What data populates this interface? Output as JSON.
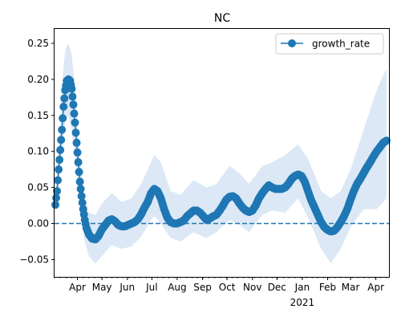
{
  "chart_data": {
    "type": "line",
    "title": "NC",
    "xlabel": "",
    "ylabel": "",
    "x_ticks": [
      {
        "date": "2020-04-01",
        "label": "Apr"
      },
      {
        "date": "2020-05-01",
        "label": "May"
      },
      {
        "date": "2020-06-01",
        "label": "Jun"
      },
      {
        "date": "2020-07-01",
        "label": "Jul"
      },
      {
        "date": "2020-08-01",
        "label": "Aug"
      },
      {
        "date": "2020-09-01",
        "label": "Sep"
      },
      {
        "date": "2020-10-01",
        "label": "Oct"
      },
      {
        "date": "2020-11-01",
        "label": "Nov"
      },
      {
        "date": "2020-12-01",
        "label": "Dec"
      },
      {
        "date": "2021-01-01",
        "label": "Jan"
      },
      {
        "date": "2021-02-01",
        "label": "Feb"
      },
      {
        "date": "2021-03-01",
        "label": "Mar"
      },
      {
        "date": "2021-04-01",
        "label": "Apr"
      }
    ],
    "x_year_label": {
      "date": "2021-01-01",
      "label": "2021"
    },
    "xlim": [
      "2020-03-04",
      "2021-04-17"
    ],
    "y_ticks": [
      -0.05,
      0.0,
      0.05,
      0.1,
      0.15,
      0.2,
      0.25
    ],
    "y_tick_labels": [
      "−0.05",
      "0.00",
      "0.05",
      "0.10",
      "0.15",
      "0.20",
      "0.25"
    ],
    "ylim": [
      -0.074,
      0.27
    ],
    "reference_line": {
      "y": 0.0,
      "style": "dashed"
    },
    "grid": false,
    "legend": {
      "position": "top-right"
    },
    "color": "#1f77b4",
    "band_color": "#dce8f5",
    "series": [
      {
        "name": "growth_rate",
        "marker": "circle",
        "points": [
          [
            "2020-03-05",
            0.026
          ],
          [
            "2020-03-07",
            0.045
          ],
          [
            "2020-03-09",
            0.075
          ],
          [
            "2020-03-11",
            0.102
          ],
          [
            "2020-03-13",
            0.13
          ],
          [
            "2020-03-15",
            0.162
          ],
          [
            "2020-03-17",
            0.185
          ],
          [
            "2020-03-19",
            0.198
          ],
          [
            "2020-03-21",
            0.2
          ],
          [
            "2020-03-23",
            0.198
          ],
          [
            "2020-03-25",
            0.187
          ],
          [
            "2020-03-27",
            0.165
          ],
          [
            "2020-03-29",
            0.14
          ],
          [
            "2020-03-31",
            0.112
          ],
          [
            "2020-04-02",
            0.085
          ],
          [
            "2020-04-04",
            0.058
          ],
          [
            "2020-04-06",
            0.038
          ],
          [
            "2020-04-08",
            0.02
          ],
          [
            "2020-04-10",
            0.005
          ],
          [
            "2020-04-12",
            -0.006
          ],
          [
            "2020-04-15",
            -0.015
          ],
          [
            "2020-04-19",
            -0.021
          ],
          [
            "2020-04-23",
            -0.022
          ],
          [
            "2020-04-27",
            -0.017
          ],
          [
            "2020-05-01",
            -0.008
          ],
          [
            "2020-05-05",
            -0.002
          ],
          [
            "2020-05-09",
            0.004
          ],
          [
            "2020-05-13",
            0.006
          ],
          [
            "2020-05-17",
            0.003
          ],
          [
            "2020-05-21",
            -0.002
          ],
          [
            "2020-05-25",
            -0.004
          ],
          [
            "2020-05-29",
            -0.004
          ],
          [
            "2020-06-02",
            -0.002
          ],
          [
            "2020-06-06",
            0.0
          ],
          [
            "2020-06-10",
            0.002
          ],
          [
            "2020-06-14",
            0.006
          ],
          [
            "2020-06-18",
            0.013
          ],
          [
            "2020-06-22",
            0.022
          ],
          [
            "2020-06-26",
            0.03
          ],
          [
            "2020-06-30",
            0.042
          ],
          [
            "2020-07-04",
            0.048
          ],
          [
            "2020-07-08",
            0.045
          ],
          [
            "2020-07-12",
            0.035
          ],
          [
            "2020-07-16",
            0.02
          ],
          [
            "2020-07-20",
            0.008
          ],
          [
            "2020-07-24",
            0.002
          ],
          [
            "2020-07-28",
            0.0
          ],
          [
            "2020-08-01",
            0.0
          ],
          [
            "2020-08-05",
            0.002
          ],
          [
            "2020-08-09",
            0.004
          ],
          [
            "2020-08-13",
            0.01
          ],
          [
            "2020-08-17",
            0.014
          ],
          [
            "2020-08-21",
            0.018
          ],
          [
            "2020-08-25",
            0.018
          ],
          [
            "2020-08-29",
            0.015
          ],
          [
            "2020-09-02",
            0.01
          ],
          [
            "2020-09-06",
            0.005
          ],
          [
            "2020-09-10",
            0.007
          ],
          [
            "2020-09-14",
            0.01
          ],
          [
            "2020-09-18",
            0.012
          ],
          [
            "2020-09-22",
            0.018
          ],
          [
            "2020-09-26",
            0.025
          ],
          [
            "2020-09-30",
            0.033
          ],
          [
            "2020-10-04",
            0.037
          ],
          [
            "2020-10-08",
            0.038
          ],
          [
            "2020-10-12",
            0.035
          ],
          [
            "2020-10-16",
            0.028
          ],
          [
            "2020-10-20",
            0.022
          ],
          [
            "2020-10-24",
            0.018
          ],
          [
            "2020-10-28",
            0.016
          ],
          [
            "2020-11-01",
            0.018
          ],
          [
            "2020-11-05",
            0.025
          ],
          [
            "2020-11-09",
            0.035
          ],
          [
            "2020-11-13",
            0.042
          ],
          [
            "2020-11-17",
            0.048
          ],
          [
            "2020-11-21",
            0.053
          ],
          [
            "2020-11-25",
            0.05
          ],
          [
            "2020-11-29",
            0.048
          ],
          [
            "2020-12-03",
            0.048
          ],
          [
            "2020-12-07",
            0.048
          ],
          [
            "2020-12-11",
            0.05
          ],
          [
            "2020-12-15",
            0.055
          ],
          [
            "2020-12-19",
            0.062
          ],
          [
            "2020-12-23",
            0.066
          ],
          [
            "2020-12-27",
            0.068
          ],
          [
            "2020-12-31",
            0.066
          ],
          [
            "2021-01-04",
            0.058
          ],
          [
            "2021-01-08",
            0.045
          ],
          [
            "2021-01-12",
            0.032
          ],
          [
            "2021-01-16",
            0.022
          ],
          [
            "2021-01-20",
            0.012
          ],
          [
            "2021-01-24",
            0.002
          ],
          [
            "2021-01-28",
            -0.005
          ],
          [
            "2021-02-01",
            -0.009
          ],
          [
            "2021-02-05",
            -0.011
          ],
          [
            "2021-02-09",
            -0.01
          ],
          [
            "2021-02-13",
            -0.005
          ],
          [
            "2021-02-17",
            0.002
          ],
          [
            "2021-02-21",
            0.01
          ],
          [
            "2021-02-25",
            0.02
          ],
          [
            "2021-03-01",
            0.033
          ],
          [
            "2021-03-05",
            0.045
          ],
          [
            "2021-03-09",
            0.055
          ],
          [
            "2021-03-13",
            0.062
          ],
          [
            "2021-03-17",
            0.07
          ],
          [
            "2021-03-21",
            0.078
          ],
          [
            "2021-03-25",
            0.085
          ],
          [
            "2021-03-29",
            0.093
          ],
          [
            "2021-04-02",
            0.1
          ],
          [
            "2021-04-06",
            0.106
          ],
          [
            "2021-04-10",
            0.112
          ],
          [
            "2021-04-14",
            0.115
          ]
        ],
        "band": [
          [
            "2020-03-05",
            0.016,
            0.036
          ],
          [
            "2020-03-09",
            0.05,
            0.1
          ],
          [
            "2020-03-13",
            0.1,
            0.19
          ],
          [
            "2020-03-17",
            0.14,
            0.24
          ],
          [
            "2020-03-21",
            0.15,
            0.25
          ],
          [
            "2020-03-25",
            0.13,
            0.235
          ],
          [
            "2020-03-29",
            0.09,
            0.19
          ],
          [
            "2020-04-02",
            0.045,
            0.125
          ],
          [
            "2020-04-06",
            0.005,
            0.07
          ],
          [
            "2020-04-10",
            -0.025,
            0.035
          ],
          [
            "2020-04-15",
            -0.045,
            0.015
          ],
          [
            "2020-04-23",
            -0.056,
            0.012
          ],
          [
            "2020-05-01",
            -0.045,
            0.028
          ],
          [
            "2020-05-13",
            -0.03,
            0.042
          ],
          [
            "2020-05-25",
            -0.035,
            0.03
          ],
          [
            "2020-06-06",
            -0.032,
            0.035
          ],
          [
            "2020-06-18",
            -0.018,
            0.055
          ],
          [
            "2020-06-30",
            0.005,
            0.085
          ],
          [
            "2020-07-04",
            0.01,
            0.095
          ],
          [
            "2020-07-12",
            0.0,
            0.085
          ],
          [
            "2020-07-24",
            -0.02,
            0.045
          ],
          [
            "2020-08-05",
            -0.025,
            0.04
          ],
          [
            "2020-08-21",
            -0.012,
            0.06
          ],
          [
            "2020-09-06",
            -0.02,
            0.05
          ],
          [
            "2020-09-18",
            -0.012,
            0.055
          ],
          [
            "2020-10-04",
            0.005,
            0.08
          ],
          [
            "2020-10-16",
            -0.002,
            0.07
          ],
          [
            "2020-10-28",
            -0.012,
            0.055
          ],
          [
            "2020-11-13",
            0.012,
            0.08
          ],
          [
            "2020-11-25",
            0.018,
            0.085
          ],
          [
            "2020-12-11",
            0.015,
            0.095
          ],
          [
            "2020-12-27",
            0.035,
            0.11
          ],
          [
            "2021-01-08",
            0.008,
            0.09
          ],
          [
            "2021-01-24",
            -0.035,
            0.045
          ],
          [
            "2021-02-05",
            -0.055,
            0.035
          ],
          [
            "2021-02-17",
            -0.035,
            0.045
          ],
          [
            "2021-03-01",
            -0.005,
            0.075
          ],
          [
            "2021-03-17",
            0.02,
            0.13
          ],
          [
            "2021-04-02",
            0.02,
            0.185
          ],
          [
            "2021-04-14",
            0.035,
            0.215
          ]
        ]
      }
    ]
  }
}
